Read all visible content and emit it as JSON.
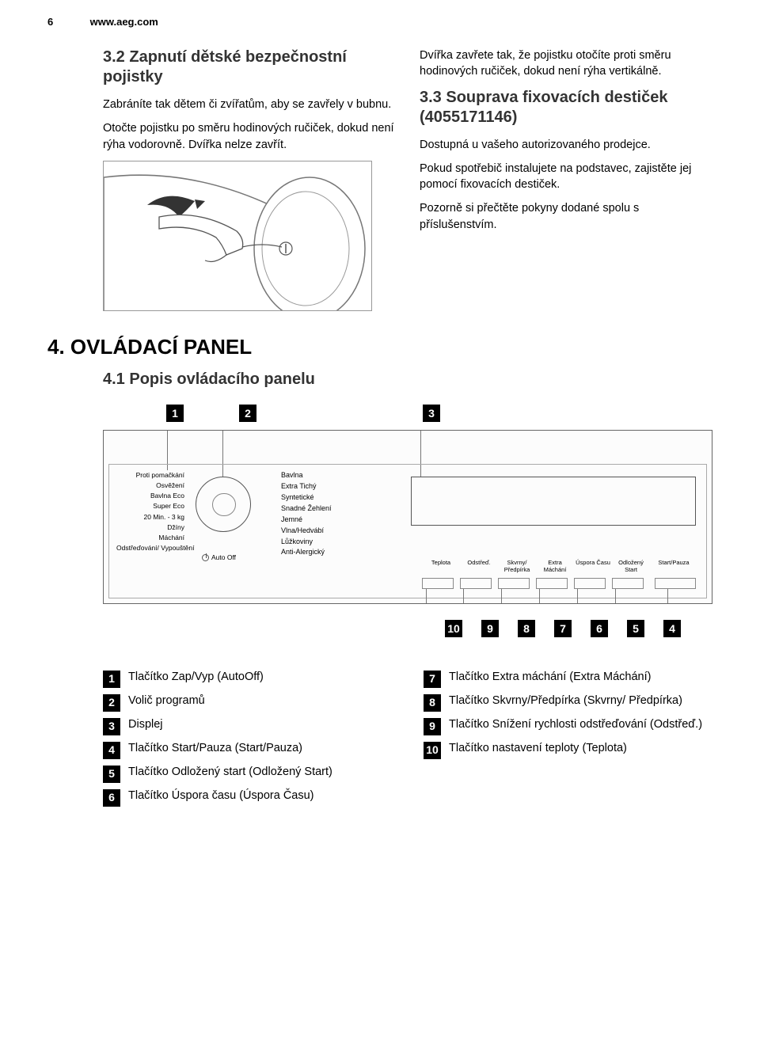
{
  "header": {
    "page_num": "6",
    "url": "www.aeg.com"
  },
  "left_col": {
    "heading": "3.2 Zapnutí dětské bezpečnostní pojistky",
    "p1": "Zabráníte tak dětem či zvířatům, aby se zavřely v bubnu.",
    "p2": "Otočte pojistku po směru hodinových ručiček, dokud není rýha vodorovně. Dvířka nelze zavřít."
  },
  "right_col": {
    "p1": "Dvířka zavřete tak, že pojistku otočíte proti směru hodinových ručiček, dokud není rýha vertikálně.",
    "heading": "3.3 Souprava fixovacích destiček (4055171146)",
    "p2": "Dostupná u vašeho autorizovaného prodejce.",
    "p3": "Pokud spotřebič instalujete na podstavec, zajistěte jej pomocí fixovacích destiček.",
    "p4": "Pozorně si přečtěte pokyny dodané spolu s příslušenstvím."
  },
  "section4": {
    "main": "4. OVLÁDACÍ PANEL",
    "sub": "4.1 Popis ovládacího panelu"
  },
  "panel": {
    "prog_left": [
      "Proti pomačkání",
      "Osvěžení",
      "Bavlna Eco",
      "Super Eco",
      "20 Min. - 3 kg",
      "Džíny",
      "Máchání",
      "Odstřeďování/ Vypouštění"
    ],
    "autooff": "Auto Off",
    "prog_right": [
      "Bavlna",
      "Extra Tichý",
      "Syntetické",
      "Snadné Žehlení",
      "Jemné",
      "Vlna/Hedvábí",
      "Lůžkoviny",
      "Anti-Alergický"
    ],
    "btn_labels": [
      "Teplota",
      "Odstřeď.",
      "Skvrny/ Předpírka",
      "Extra Máchání",
      "Úspora Času",
      "Odložený Start",
      "Start/Pauza"
    ]
  },
  "callouts_top": [
    "1",
    "2",
    "3"
  ],
  "callouts_bottom": [
    "10",
    "9",
    "8",
    "7",
    "6",
    "5",
    "4"
  ],
  "legend_left": [
    {
      "n": "1",
      "t": "Tlačítko Zap/Vyp (AutoOff)"
    },
    {
      "n": "2",
      "t": "Volič programů"
    },
    {
      "n": "3",
      "t": "Displej"
    },
    {
      "n": "4",
      "t": "Tlačítko Start/Pauza (Start/Pauza)"
    },
    {
      "n": "5",
      "t": "Tlačítko Odložený start (Odložený Start)"
    },
    {
      "n": "6",
      "t": "Tlačítko Úspora času (Úspora Času)"
    }
  ],
  "legend_right": [
    {
      "n": "7",
      "t": "Tlačítko Extra máchání (Extra Máchání)"
    },
    {
      "n": "8",
      "t": "Tlačítko Skvrny/Předpírka (Skvrny/ Předpírka)"
    },
    {
      "n": "9",
      "t": "Tlačítko Snížení rychlosti odstřeďování (Odstřeď.)"
    },
    {
      "n": "10",
      "t": "Tlačítko nastavení teploty (Teplota)"
    }
  ]
}
